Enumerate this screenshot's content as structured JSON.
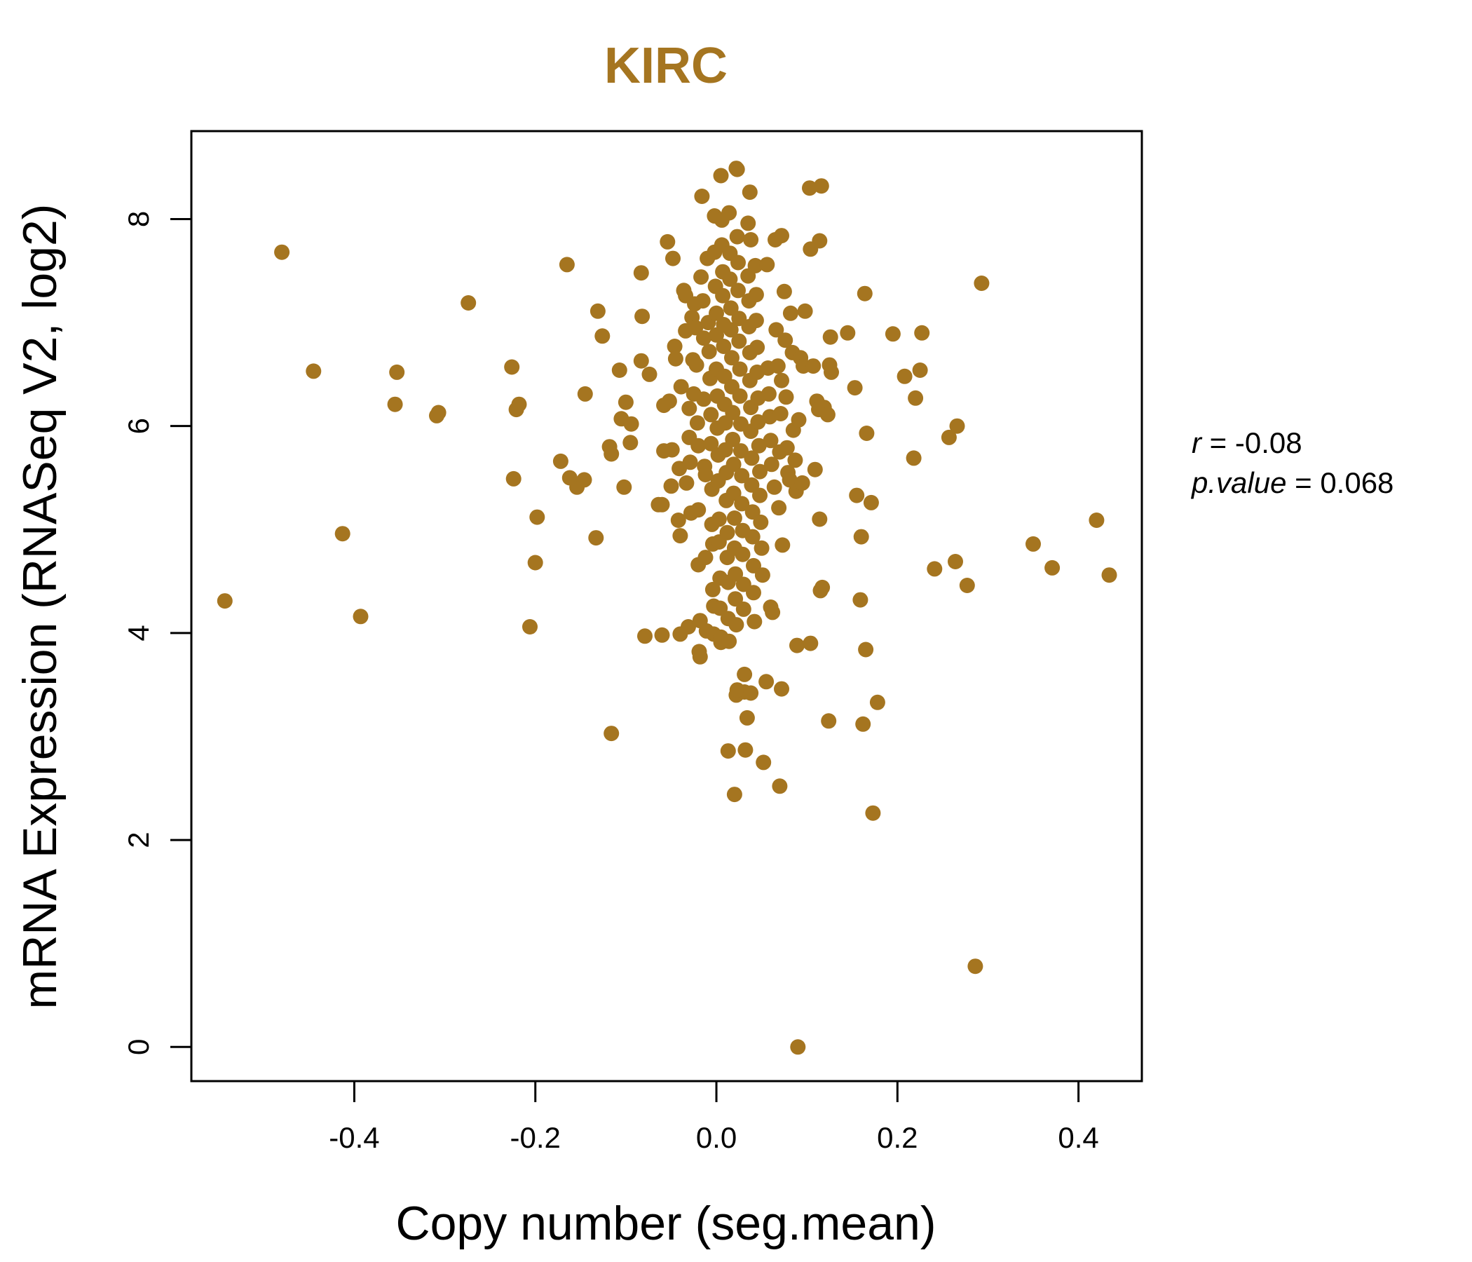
{
  "chart_data": {
    "type": "scatter",
    "title": "KIRC",
    "xlabel": "Copy number (seg.mean)",
    "ylabel": "mRNA Expression (RNASeq V2, log2)",
    "xlim": [
      -0.58,
      0.47
    ],
    "ylim": [
      -0.33,
      8.85
    ],
    "xticks": [
      "-0.4",
      "-0.2",
      "0.0",
      "0.2",
      "0.4"
    ],
    "yticks": [
      "0",
      "2",
      "4",
      "6",
      "8"
    ],
    "grid": false,
    "legend": "none",
    "stats": {
      "r_label": "r",
      "r_value": "-0.08",
      "p_label": "p.value",
      "p_value": "0.068"
    },
    "colors": {
      "points": "#A57520",
      "title": "#A57520",
      "axes": "#000000"
    },
    "points": [
      [
        -0.48,
        7.68
      ],
      [
        -0.445,
        6.53
      ],
      [
        -0.353,
        6.52
      ],
      [
        -0.355,
        6.21
      ],
      [
        -0.307,
        6.13
      ],
      [
        -0.309,
        6.1
      ],
      [
        -0.274,
        7.19
      ],
      [
        -0.413,
        4.96
      ],
      [
        -0.393,
        4.16
      ],
      [
        -0.543,
        4.31
      ],
      [
        -0.226,
        6.57
      ],
      [
        -0.218,
        6.21
      ],
      [
        -0.221,
        6.16
      ],
      [
        -0.224,
        5.49
      ],
      [
        -0.198,
        5.12
      ],
      [
        -0.2,
        4.68
      ],
      [
        -0.206,
        4.06
      ],
      [
        -0.165,
        7.56
      ],
      [
        -0.172,
        5.66
      ],
      [
        -0.162,
        5.5
      ],
      [
        -0.154,
        5.41
      ],
      [
        -0.146,
        5.48
      ],
      [
        -0.145,
        6.31
      ],
      [
        -0.133,
        4.92
      ],
      [
        -0.131,
        7.11
      ],
      [
        -0.126,
        6.87
      ],
      [
        -0.118,
        5.8
      ],
      [
        -0.116,
        5.73
      ],
      [
        -0.116,
        3.03
      ],
      [
        -0.107,
        6.54
      ],
      [
        -0.105,
        6.07
      ],
      [
        -0.102,
        5.41
      ],
      [
        -0.1,
        6.23
      ],
      [
        -0.095,
        5.84
      ],
      [
        -0.094,
        6.02
      ],
      [
        -0.083,
        7.48
      ],
      [
        -0.082,
        7.06
      ],
      [
        -0.083,
        6.63
      ],
      [
        -0.079,
        3.97
      ],
      [
        -0.074,
        6.5
      ],
      [
        -0.064,
        5.24
      ],
      [
        -0.06,
        5.24
      ],
      [
        -0.058,
        5.76
      ],
      [
        -0.058,
        6.2
      ],
      [
        -0.06,
        3.98
      ],
      [
        -0.054,
        7.78
      ],
      [
        -0.052,
        6.24
      ],
      [
        -0.05,
        5.42
      ],
      [
        -0.049,
        5.77
      ],
      [
        -0.048,
        7.62
      ],
      [
        -0.046,
        6.77
      ],
      [
        -0.045,
        6.65
      ],
      [
        -0.042,
        5.09
      ],
      [
        -0.041,
        5.59
      ],
      [
        -0.04,
        4.94
      ],
      [
        -0.04,
        3.99
      ],
      [
        -0.039,
        6.38
      ],
      [
        -0.036,
        7.31
      ],
      [
        -0.034,
        7.26
      ],
      [
        -0.034,
        6.92
      ],
      [
        -0.033,
        5.45
      ],
      [
        -0.031,
        4.06
      ],
      [
        -0.03,
        6.17
      ],
      [
        -0.03,
        5.89
      ],
      [
        -0.029,
        5.65
      ],
      [
        -0.028,
        5.16
      ],
      [
        -0.027,
        7.05
      ],
      [
        -0.026,
        6.64
      ],
      [
        -0.025,
        6.31
      ],
      [
        -0.024,
        7.18
      ],
      [
        -0.023,
        6.95
      ],
      [
        -0.022,
        6.59
      ],
      [
        -0.021,
        6.03
      ],
      [
        -0.02,
        5.81
      ],
      [
        -0.02,
        5.19
      ],
      [
        -0.02,
        4.66
      ],
      [
        -0.019,
        3.82
      ],
      [
        -0.018,
        3.77
      ],
      [
        -0.018,
        4.12
      ],
      [
        -0.017,
        7.44
      ],
      [
        -0.016,
        8.22
      ],
      [
        -0.015,
        7.21
      ],
      [
        -0.014,
        6.85
      ],
      [
        -0.014,
        6.26
      ],
      [
        -0.013,
        5.61
      ],
      [
        -0.012,
        5.53
      ],
      [
        -0.012,
        4.73
      ],
      [
        -0.011,
        4.02
      ],
      [
        -0.01,
        7.62
      ],
      [
        -0.009,
        7.0
      ],
      [
        -0.008,
        6.72
      ],
      [
        -0.007,
        6.46
      ],
      [
        -0.006,
        6.11
      ],
      [
        -0.006,
        5.83
      ],
      [
        -0.005,
        5.39
      ],
      [
        -0.005,
        5.05
      ],
      [
        -0.004,
        4.86
      ],
      [
        -0.004,
        4.42
      ],
      [
        -0.003,
        4.26
      ],
      [
        -0.003,
        3.99
      ],
      [
        -0.002,
        8.03
      ],
      [
        -0.002,
        7.68
      ],
      [
        -0.001,
        7.35
      ],
      [
        0.0,
        7.09
      ],
      [
        0.0,
        6.88
      ],
      [
        0.0,
        6.55
      ],
      [
        0.001,
        6.29
      ],
      [
        0.001,
        5.98
      ],
      [
        0.002,
        5.72
      ],
      [
        0.002,
        5.47
      ],
      [
        0.003,
        5.1
      ],
      [
        0.003,
        4.88
      ],
      [
        0.004,
        4.53
      ],
      [
        0.004,
        4.24
      ],
      [
        0.005,
        3.91
      ],
      [
        0.005,
        3.96
      ],
      [
        0.005,
        8.42
      ],
      [
        0.006,
        7.99
      ],
      [
        0.006,
        7.75
      ],
      [
        0.007,
        7.49
      ],
      [
        0.007,
        7.26
      ],
      [
        0.008,
        6.98
      ],
      [
        0.008,
        6.77
      ],
      [
        0.009,
        6.48
      ],
      [
        0.009,
        6.21
      ],
      [
        0.01,
        6.03
      ],
      [
        0.01,
        5.77
      ],
      [
        0.011,
        5.55
      ],
      [
        0.011,
        5.28
      ],
      [
        0.012,
        4.97
      ],
      [
        0.012,
        4.73
      ],
      [
        0.013,
        4.49
      ],
      [
        0.013,
        4.14
      ],
      [
        0.014,
        3.92
      ],
      [
        0.014,
        8.06
      ],
      [
        0.015,
        7.67
      ],
      [
        0.015,
        7.42
      ],
      [
        0.016,
        7.14
      ],
      [
        0.016,
        6.93
      ],
      [
        0.017,
        6.66
      ],
      [
        0.017,
        6.38
      ],
      [
        0.018,
        6.13
      ],
      [
        0.018,
        5.87
      ],
      [
        0.019,
        5.63
      ],
      [
        0.019,
        5.35
      ],
      [
        0.02,
        5.11
      ],
      [
        0.02,
        4.82
      ],
      [
        0.021,
        4.57
      ],
      [
        0.021,
        4.33
      ],
      [
        0.022,
        4.08
      ],
      [
        0.02,
        2.44
      ],
      [
        0.022,
        8.49
      ],
      [
        0.023,
        8.48
      ],
      [
        0.023,
        7.83
      ],
      [
        0.024,
        7.58
      ],
      [
        0.024,
        7.31
      ],
      [
        0.025,
        7.04
      ],
      [
        0.025,
        6.82
      ],
      [
        0.026,
        6.55
      ],
      [
        0.026,
        6.29
      ],
      [
        0.027,
        6.02
      ],
      [
        0.027,
        5.76
      ],
      [
        0.028,
        5.52
      ],
      [
        0.028,
        5.25
      ],
      [
        0.029,
        4.99
      ],
      [
        0.029,
        4.76
      ],
      [
        0.03,
        4.47
      ],
      [
        0.03,
        4.23
      ],
      [
        0.031,
        3.6
      ],
      [
        0.031,
        3.43
      ],
      [
        0.022,
        3.4
      ],
      [
        0.023,
        3.45
      ],
      [
        0.032,
        2.87
      ],
      [
        0.013,
        2.86
      ],
      [
        0.034,
        3.18
      ],
      [
        0.035,
        7.96
      ],
      [
        0.035,
        7.45
      ],
      [
        0.036,
        7.21
      ],
      [
        0.036,
        6.96
      ],
      [
        0.037,
        6.71
      ],
      [
        0.037,
        6.44
      ],
      [
        0.038,
        6.18
      ],
      [
        0.038,
        5.95
      ],
      [
        0.039,
        5.69
      ],
      [
        0.039,
        5.43
      ],
      [
        0.04,
        5.17
      ],
      [
        0.04,
        4.93
      ],
      [
        0.041,
        4.65
      ],
      [
        0.041,
        4.39
      ],
      [
        0.042,
        4.11
      ],
      [
        0.038,
        3.42
      ],
      [
        0.037,
        8.26
      ],
      [
        0.038,
        7.8
      ],
      [
        0.043,
        7.55
      ],
      [
        0.044,
        7.27
      ],
      [
        0.044,
        7.02
      ],
      [
        0.045,
        6.76
      ],
      [
        0.045,
        6.52
      ],
      [
        0.046,
        6.27
      ],
      [
        0.046,
        6.04
      ],
      [
        0.047,
        5.81
      ],
      [
        0.048,
        5.56
      ],
      [
        0.048,
        5.33
      ],
      [
        0.049,
        5.07
      ],
      [
        0.05,
        4.82
      ],
      [
        0.051,
        4.56
      ],
      [
        0.052,
        2.75
      ],
      [
        0.055,
        3.53
      ],
      [
        0.056,
        7.56
      ],
      [
        0.057,
        6.56
      ],
      [
        0.058,
        6.31
      ],
      [
        0.059,
        6.09
      ],
      [
        0.06,
        5.86
      ],
      [
        0.061,
        5.63
      ],
      [
        0.06,
        4.25
      ],
      [
        0.062,
        4.2
      ],
      [
        0.064,
        5.41
      ],
      [
        0.065,
        7.8
      ],
      [
        0.066,
        6.93
      ],
      [
        0.068,
        6.58
      ],
      [
        0.069,
        5.21
      ],
      [
        0.07,
        5.75
      ],
      [
        0.071,
        6.12
      ],
      [
        0.07,
        2.52
      ],
      [
        0.072,
        7.84
      ],
      [
        0.072,
        6.44
      ],
      [
        0.073,
        4.85
      ],
      [
        0.072,
        3.46
      ],
      [
        0.075,
        7.3
      ],
      [
        0.076,
        6.83
      ],
      [
        0.077,
        6.28
      ],
      [
        0.078,
        5.79
      ],
      [
        0.079,
        5.55
      ],
      [
        0.081,
        5.48
      ],
      [
        0.082,
        7.09
      ],
      [
        0.084,
        6.71
      ],
      [
        0.085,
        5.96
      ],
      [
        0.087,
        5.67
      ],
      [
        0.088,
        5.37
      ],
      [
        0.089,
        3.88
      ],
      [
        0.09,
        0.0
      ],
      [
        0.091,
        6.06
      ],
      [
        0.093,
        6.66
      ],
      [
        0.095,
        5.45
      ],
      [
        0.096,
        6.58
      ],
      [
        0.098,
        7.11
      ],
      [
        0.103,
        8.3
      ],
      [
        0.104,
        7.71
      ],
      [
        0.104,
        3.9
      ],
      [
        0.107,
        6.58
      ],
      [
        0.109,
        5.58
      ],
      [
        0.111,
        6.24
      ],
      [
        0.113,
        6.16
      ],
      [
        0.114,
        7.79
      ],
      [
        0.114,
        5.1
      ],
      [
        0.115,
        4.41
      ],
      [
        0.116,
        8.32
      ],
      [
        0.117,
        4.44
      ],
      [
        0.119,
        6.18
      ],
      [
        0.123,
        6.11
      ],
      [
        0.124,
        3.15
      ],
      [
        0.125,
        6.59
      ],
      [
        0.126,
        6.86
      ],
      [
        0.127,
        6.52
      ],
      [
        0.145,
        6.9
      ],
      [
        0.153,
        6.37
      ],
      [
        0.155,
        5.33
      ],
      [
        0.159,
        4.32
      ],
      [
        0.16,
        4.93
      ],
      [
        0.162,
        3.12
      ],
      [
        0.164,
        7.28
      ],
      [
        0.165,
        3.84
      ],
      [
        0.166,
        5.93
      ],
      [
        0.171,
        5.26
      ],
      [
        0.173,
        2.26
      ],
      [
        0.178,
        3.33
      ],
      [
        0.195,
        6.89
      ],
      [
        0.208,
        6.48
      ],
      [
        0.218,
        5.69
      ],
      [
        0.22,
        6.27
      ],
      [
        0.225,
        6.54
      ],
      [
        0.227,
        6.9
      ],
      [
        0.241,
        4.62
      ],
      [
        0.257,
        5.89
      ],
      [
        0.264,
        4.69
      ],
      [
        0.266,
        6.0
      ],
      [
        0.277,
        4.46
      ],
      [
        0.286,
        0.78
      ],
      [
        0.293,
        7.38
      ],
      [
        0.35,
        4.86
      ],
      [
        0.371,
        4.63
      ],
      [
        0.42,
        5.09
      ],
      [
        0.434,
        4.56
      ]
    ]
  }
}
